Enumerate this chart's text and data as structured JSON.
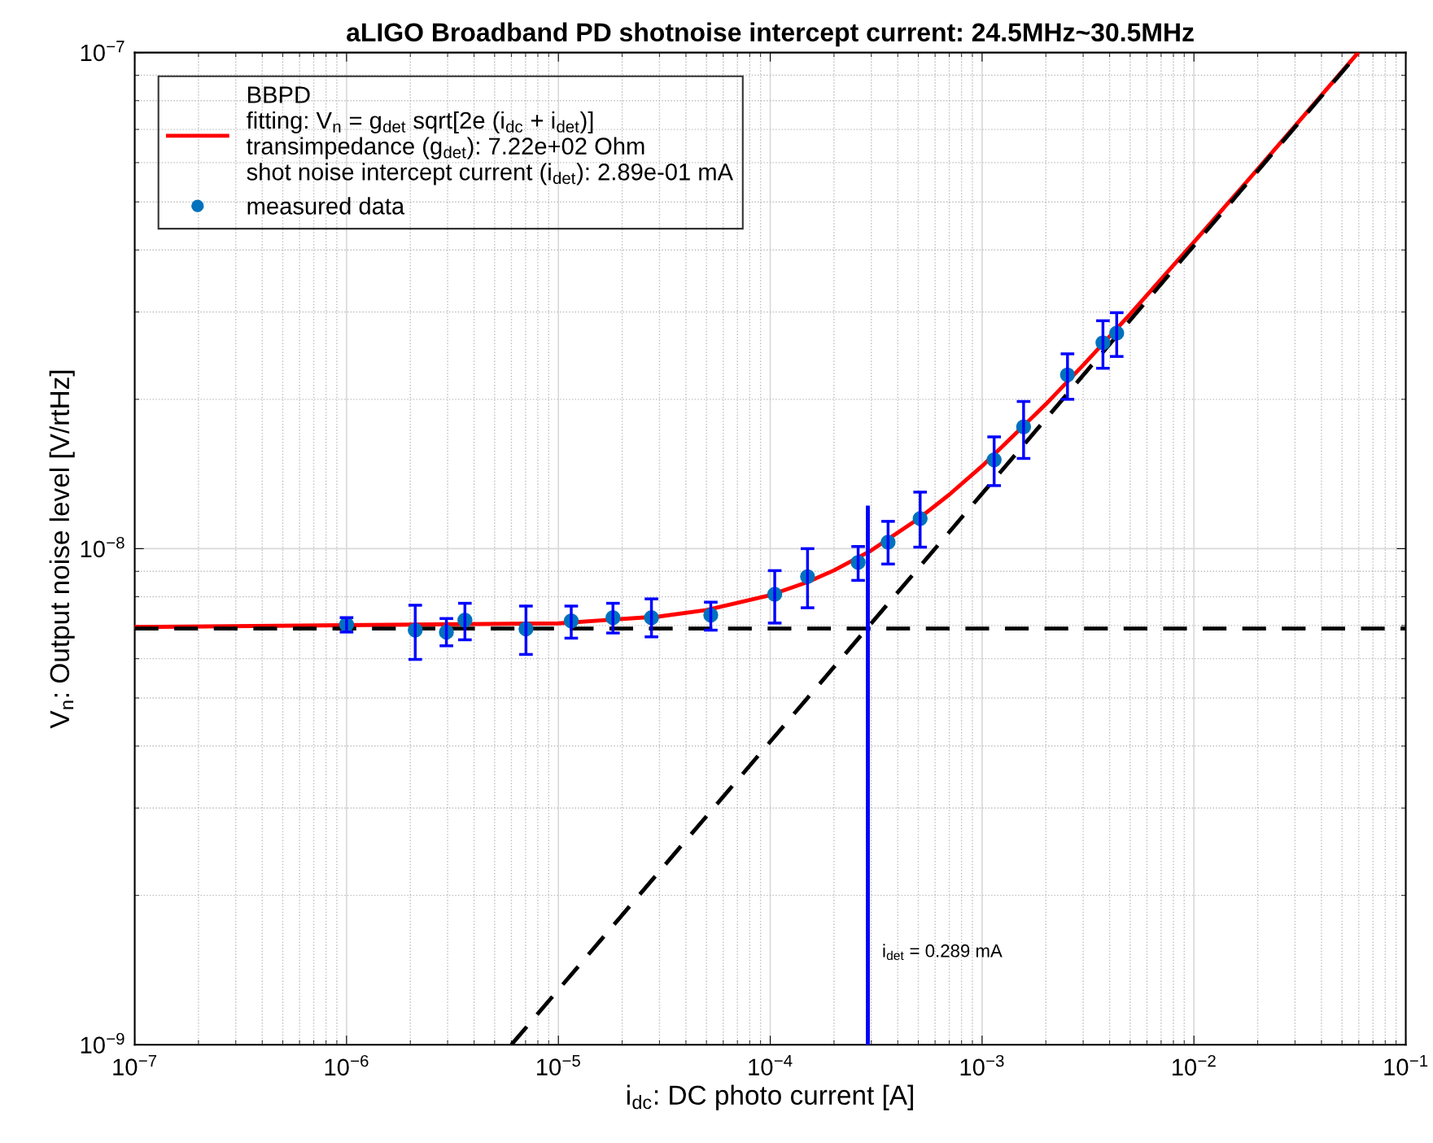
{
  "chart_data": {
    "type": "scatter",
    "title": "aLIGO Broadband PD shotnoise intercept current: 24.5MHz~30.5MHz",
    "xlabel": "i$_{dc}$: DC photo current [A]",
    "ylabel": "V$_{n}$: Output noise level [V/rtHz]",
    "log": "xy",
    "grid": true,
    "legend": "top left",
    "xlim": [
      1e-07,
      0.1
    ],
    "ylim": [
      1e-09,
      1e-07
    ],
    "xticks": [
      {
        "value": 1e-07,
        "label": "10$^{−7}$"
      },
      {
        "value": 1e-06,
        "label": "10$^{−6}$"
      },
      {
        "value": 1e-05,
        "label": "10$^{−5}$"
      },
      {
        "value": 0.0001,
        "label": "10$^{−4}$"
      },
      {
        "value": 0.001,
        "label": "10$^{−3}$"
      },
      {
        "value": 0.01,
        "label": "10$^{−2}$"
      },
      {
        "value": 0.1,
        "label": "10$^{−1}$"
      }
    ],
    "yticks": [
      {
        "value": 1e-09,
        "label": "10$^{−9}$"
      },
      {
        "value": 1e-08,
        "label": "10$^{−8}$"
      },
      {
        "value": 1e-07,
        "label": "10$^{−7}$"
      }
    ],
    "annotations": [
      "i$_{det}$ = 0.289 mA"
    ],
    "series": [
      {
        "type": "line",
        "line_style": "solid",
        "color": "#ff0000",
        "name": "BBPD\nfitting: V$_{n}$ = g$_{det}$ sqrt[2e (i$_{dc}$ + i$_{det}$)]\ntransimpedance (g$_{det}$): 7.22e+02 Ohm\nshot noise intercept current (i$_{det}$): 2.89e-01 mA",
        "x": [
          1e-07,
          1e-05,
          3e-05,
          5e-05,
          0.0001,
          0.00015,
          0.0002,
          0.0003,
          0.0005,
          0.0007,
          0.001,
          0.002,
          0.003,
          0.005,
          0.01,
          0.02,
          0.03,
          0.059
        ],
        "values": [
          6.95e-09,
          7.07e-09,
          7.3e-09,
          7.52e-09,
          8.06e-09,
          8.56e-09,
          9.04e-09,
          9.92e-09,
          1.148e-08,
          1.285e-08,
          1.467e-08,
          1.955e-08,
          2.344e-08,
          2.97e-08,
          4.15e-08,
          5.82e-08,
          7.11e-08,
          9.95e-08
        ]
      },
      {
        "type": "line",
        "line_style": "dashed",
        "color": "#000000",
        "x": [
          1e-07,
          0.1
        ],
        "values": [
          6.9e-09,
          6.9e-09
        ]
      },
      {
        "type": "line",
        "line_style": "dashed",
        "color": "#000000",
        "x": [
          6e-06,
          0.06
        ],
        "values": [
          1e-09,
          1e-07
        ]
      },
      {
        "type": "line",
        "line_style": "solid",
        "color": "#0000ff",
        "x": [
          0.000289,
          0.000289
        ],
        "values": [
          1e-09,
          1.21e-08
        ]
      },
      {
        "marker": "circle",
        "color": "#0072bd",
        "name": "measured data",
        "x": [
          1e-06,
          2.11e-06,
          2.96e-06,
          3.62e-06,
          7.03e-06,
          1.15e-05,
          1.81e-05,
          2.75e-05,
          5.24e-05,
          0.000105,
          0.00015,
          0.00026,
          0.00036,
          0.00051,
          0.00114,
          0.00157,
          0.00253,
          0.00372,
          0.00432
        ],
        "values": [
          7.03e-09,
          6.85e-09,
          6.79e-09,
          7.18e-09,
          6.89e-09,
          7.15e-09,
          7.26e-09,
          7.26e-09,
          7.35e-09,
          8.09e-09,
          8.78e-09,
          9.38e-09,
          1.03e-08,
          1.15e-08,
          1.51e-08,
          1.76e-08,
          2.24e-08,
          2.6e-08,
          2.72e-08
        ],
        "errors": [
          [
            6.79e-09,
            7.26e-09
          ],
          [
            5.98e-09,
            7.69e-09
          ],
          [
            6.37e-09,
            7.23e-09
          ],
          [
            6.55e-09,
            7.76e-09
          ],
          [
            6.12e-09,
            7.66e-09
          ],
          [
            6.6e-09,
            7.66e-09
          ],
          [
            6.76e-09,
            7.76e-09
          ],
          [
            6.64e-09,
            7.92e-09
          ],
          [
            6.85e-09,
            7.8e-09
          ],
          [
            7.08e-09,
            9.03e-09
          ],
          [
            7.6e-09,
            1e-08
          ],
          [
            8.63e-09,
            1.01e-08
          ],
          [
            9.31e-09,
            1.135e-08
          ],
          [
            1.007e-08,
            1.3e-08
          ],
          [
            1.34e-08,
            1.68e-08
          ],
          [
            1.52e-08,
            1.98e-08
          ],
          [
            2e-08,
            2.47e-08
          ],
          [
            2.31e-08,
            2.88e-08
          ],
          [
            2.44e-08,
            2.99e-08
          ]
        ]
      }
    ]
  }
}
